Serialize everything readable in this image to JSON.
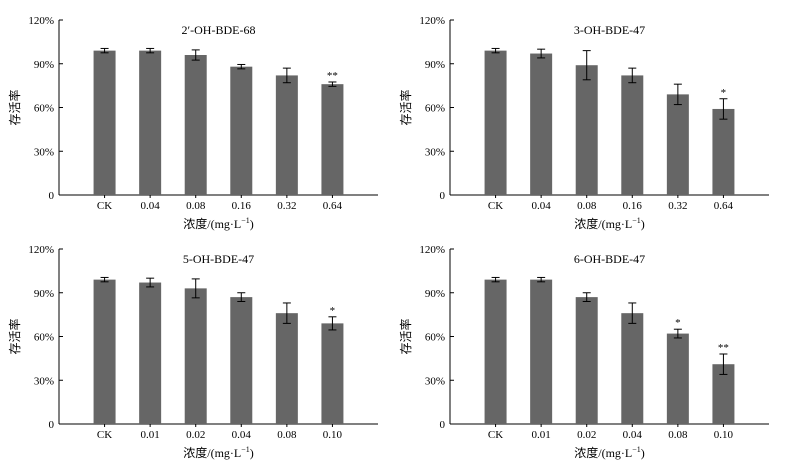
{
  "chart_data": [
    {
      "type": "bar",
      "title": "2′-OH-BDE-68",
      "xlabel": "浓度/(mg·L",
      "xlabel_sup": "−1",
      "xlabel_end": ")",
      "ylabel": "存活率",
      "categories": [
        "CK",
        "0.04",
        "0.08",
        "0.16",
        "0.32",
        "0.64"
      ],
      "values": [
        99,
        99,
        96,
        88,
        82,
        76
      ],
      "errors": [
        1.5,
        1.5,
        3.5,
        1.5,
        5.0,
        1.5
      ],
      "significance": [
        "",
        "",
        "",
        "",
        "",
        "**"
      ],
      "ylim": [
        0,
        120
      ],
      "yticks": [
        "0",
        "30%",
        "60%",
        "90%",
        "120%"
      ],
      "bar_color": "#666666"
    },
    {
      "type": "bar",
      "title": "3-OH-BDE-47",
      "xlabel": "浓度/(mg·L",
      "xlabel_sup": "−1",
      "xlabel_end": ")",
      "ylabel": "存活率",
      "categories": [
        "CK",
        "0.04",
        "0.08",
        "0.16",
        "0.32",
        "0.64"
      ],
      "values": [
        99,
        97,
        89,
        82,
        69,
        59
      ],
      "errors": [
        1.5,
        3.0,
        10.0,
        5.0,
        7.0,
        7.0
      ],
      "significance": [
        "",
        "",
        "",
        "",
        "",
        "*"
      ],
      "ylim": [
        0,
        120
      ],
      "yticks": [
        "0",
        "30%",
        "60%",
        "90%",
        "120%"
      ],
      "bar_color": "#666666"
    },
    {
      "type": "bar",
      "title": "5-OH-BDE-47",
      "xlabel": "浓度/(mg·L",
      "xlabel_sup": "−1",
      "xlabel_end": ")",
      "ylabel": "存活率",
      "categories": [
        "CK",
        "0.01",
        "0.02",
        "0.04",
        "0.08",
        "0.10"
      ],
      "values": [
        99,
        97,
        93,
        87,
        76,
        69
      ],
      "errors": [
        1.5,
        3.0,
        6.5,
        3.0,
        7.0,
        4.5
      ],
      "significance": [
        "",
        "",
        "",
        "",
        "",
        "*"
      ],
      "ylim": [
        0,
        120
      ],
      "yticks": [
        "0",
        "30%",
        "60%",
        "90%",
        "120%"
      ],
      "bar_color": "#666666"
    },
    {
      "type": "bar",
      "title": "6-OH-BDE-47",
      "xlabel": "浓度/(mg·L",
      "xlabel_sup": "−1",
      "xlabel_end": ")",
      "ylabel": "存活率",
      "categories": [
        "CK",
        "0.01",
        "0.02",
        "0.04",
        "0.08",
        "0.10"
      ],
      "values": [
        99,
        99,
        87,
        76,
        62,
        41
      ],
      "errors": [
        1.5,
        1.5,
        3.0,
        7.0,
        3.0,
        7.0
      ],
      "significance": [
        "",
        "",
        "",
        "",
        "*",
        "**"
      ],
      "ylim": [
        0,
        120
      ],
      "yticks": [
        "0",
        "30%",
        "60%",
        "90%",
        "120%"
      ],
      "bar_color": "#666666"
    }
  ]
}
